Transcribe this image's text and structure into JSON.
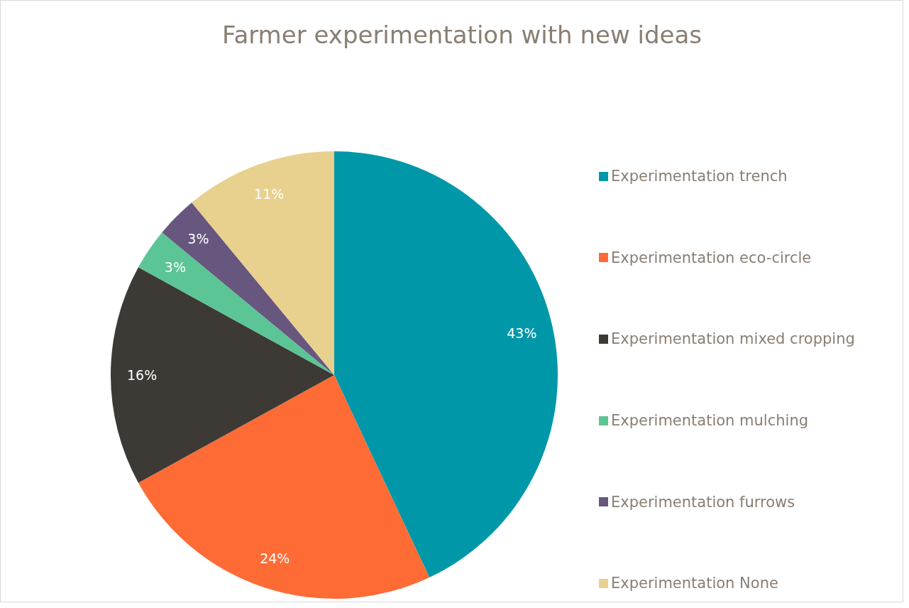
{
  "chart_data": {
    "type": "pie",
    "title": "Farmer experimentation with new ideas",
    "categories": [
      "Experimentation trench",
      "Experimentation eco-circle",
      "Experimentation mixed cropping",
      "Experimentation mulching",
      "Experimentation furrows",
      "Experimentation None"
    ],
    "values": [
      43,
      24,
      16,
      3,
      3,
      11
    ],
    "colors": [
      "#0098a8",
      "#ff6b35",
      "#3d3a35",
      "#5bc595",
      "#67577f",
      "#e8d08f"
    ],
    "value_labels": [
      "43%",
      "24%",
      "16%",
      "3%",
      "3%",
      "11%"
    ],
    "legend": "right"
  }
}
